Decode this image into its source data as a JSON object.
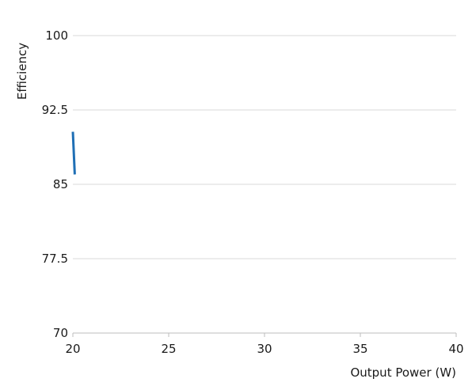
{
  "chart_data": {
    "type": "line",
    "title": "",
    "xlabel": "Output Power (W)",
    "ylabel": "Efficiency",
    "xlim": [
      20,
      40
    ],
    "ylim": [
      70,
      100
    ],
    "x_ticks": [
      "20",
      "25",
      "30",
      "35",
      "40"
    ],
    "y_ticks": [
      "70",
      "77.5",
      "85",
      "92.5",
      "100"
    ],
    "grid": "horizontal",
    "legend": "none",
    "series": [
      {
        "color": "#1f6fb5",
        "points": [
          {
            "x": 20.0,
            "y": 90.3
          },
          {
            "x": 20.1,
            "y": 86.0
          }
        ]
      }
    ]
  }
}
